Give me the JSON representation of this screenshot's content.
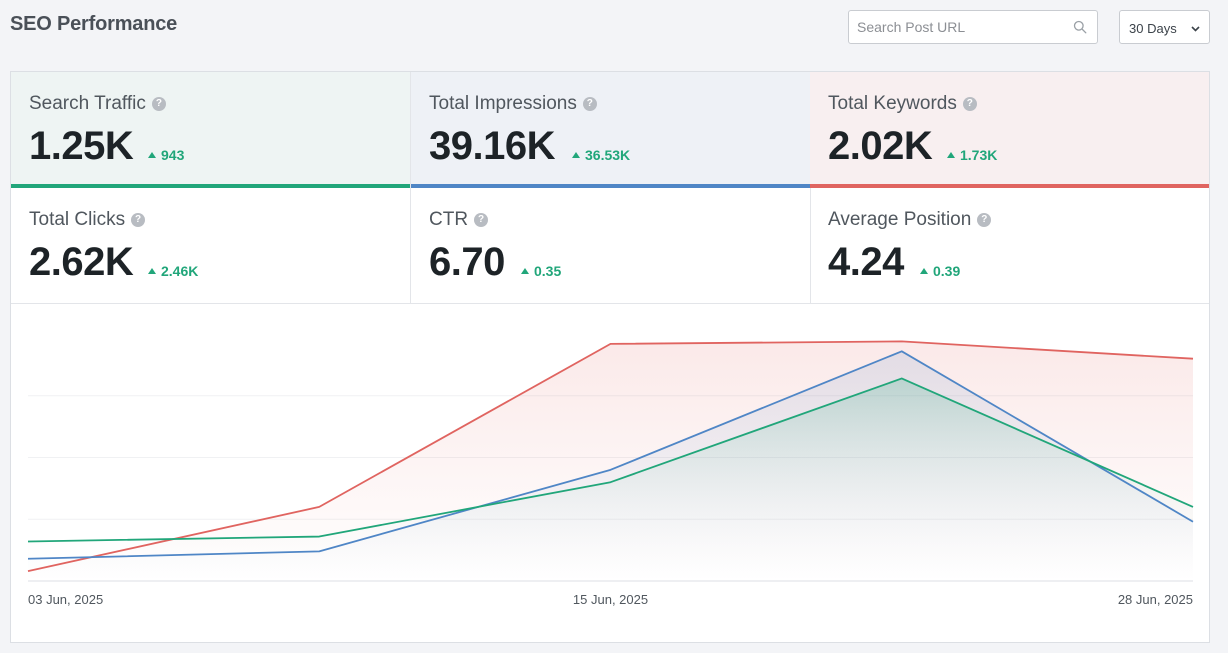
{
  "header": {
    "title": "SEO Performance",
    "search_placeholder": "Search Post URL",
    "range_label": "30 Days"
  },
  "colors": {
    "green": "#21a67a",
    "blue": "#4f86c6",
    "red": "#e06460"
  },
  "stats": [
    {
      "name": "Search Traffic",
      "value": "1.25K",
      "delta": "943"
    },
    {
      "name": "Total Impressions",
      "value": "39.16K",
      "delta": "36.53K"
    },
    {
      "name": "Total Keywords",
      "value": "2.02K",
      "delta": "1.73K"
    },
    {
      "name": "Total Clicks",
      "value": "2.62K",
      "delta": "2.46K"
    },
    {
      "name": "CTR",
      "value": "6.70",
      "delta": "0.35"
    },
    {
      "name": "Average Position",
      "value": "4.24",
      "delta": "0.39"
    }
  ],
  "chart_data": {
    "type": "area",
    "x": [
      "03 Jun, 2025",
      "",
      "15 Jun, 2025",
      "",
      "28 Jun, 2025"
    ],
    "x_tick_labels": [
      "03 Jun, 2025",
      "15 Jun, 2025",
      "28 Jun, 2025"
    ],
    "ylim": [
      0,
      100
    ],
    "grid": true,
    "series": [
      {
        "name": "Total Keywords",
        "color": "#e06460",
        "values": [
          4,
          30,
          96,
          97,
          90
        ]
      },
      {
        "name": "Total Impressions",
        "color": "#4f86c6",
        "values": [
          9,
          12,
          45,
          93,
          24
        ]
      },
      {
        "name": "Search Traffic",
        "color": "#21a67a",
        "values": [
          16,
          18,
          40,
          82,
          30
        ]
      }
    ]
  }
}
